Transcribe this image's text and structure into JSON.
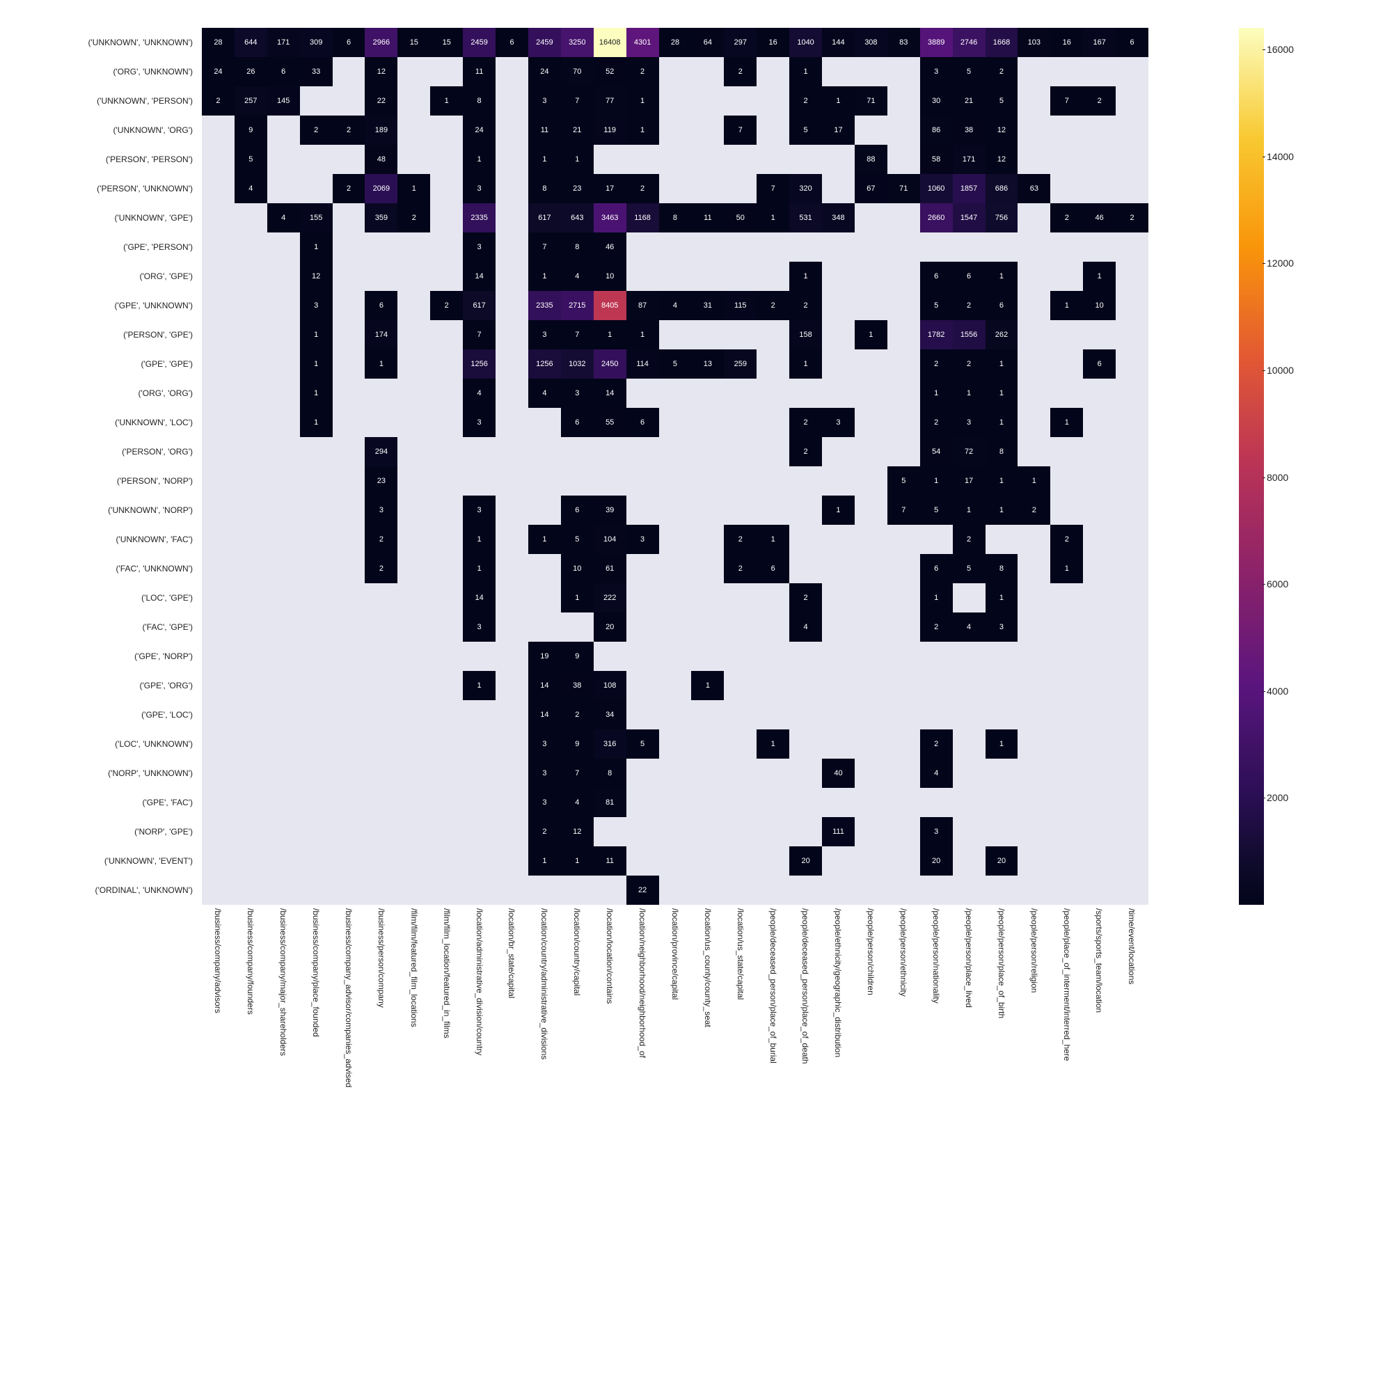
{
  "chart": {
    "type": "heatmap",
    "background_color": "#ffffff",
    "empty_color": "#e6e6f0",
    "cell_text_color": "#ffffff",
    "cell_text_fontsize": 11,
    "label_fontsize": 12,
    "colormap": {
      "stops": [
        {
          "v": 0,
          "c": "#03051a"
        },
        {
          "v": 0.05,
          "c": "#100b2d"
        },
        {
          "v": 0.125,
          "c": "#2b0f54"
        },
        {
          "v": 0.25,
          "c": "#5a157e"
        },
        {
          "v": 0.375,
          "c": "#8b226a"
        },
        {
          "v": 0.5,
          "c": "#b93357"
        },
        {
          "v": 0.625,
          "c": "#e35933"
        },
        {
          "v": 0.75,
          "c": "#f9950a"
        },
        {
          "v": 0.875,
          "c": "#f8c932"
        },
        {
          "v": 1.0,
          "c": "#fcfdbf"
        }
      ],
      "vmin": 0,
      "vmax": 16408
    },
    "colorbar_ticks": [
      2000,
      4000,
      6000,
      8000,
      10000,
      12000,
      14000,
      16000
    ],
    "x_labels": [
      "/business/company/advisors",
      "/business/company/founders",
      "/business/company/major_shareholders",
      "/business/company/place_founded",
      "/business/company_advisor/companies_advised",
      "/business/person/company",
      "/film/film/featured_film_locations",
      "/film/film_location/featured_in_films",
      "/location/administrative_division/country",
      "/location/br_state/capital",
      "/location/country/administrative_divisions",
      "/location/country/capital",
      "/location/location/contains",
      "/location/neighborhood/neighborhood_of",
      "/location/province/capital",
      "/location/us_county/county_seat",
      "/location/us_state/capital",
      "/people/deceased_person/place_of_burial",
      "/people/deceased_person/place_of_death",
      "/people/ethnicity/geographic_distribution",
      "/people/person/children",
      "/people/person/ethnicity",
      "/people/person/nationality",
      "/people/person/place_lived",
      "/people/person/place_of_birth",
      "/people/person/religion",
      "/people/place_of_interment/interred_here",
      "/sports/sports_team/location",
      "/time/event/locations"
    ],
    "y_labels": [
      "('UNKNOWN', 'UNKNOWN')",
      "('ORG', 'UNKNOWN')",
      "('UNKNOWN', 'PERSON')",
      "('UNKNOWN', 'ORG')",
      "('PERSON', 'PERSON')",
      "('PERSON', 'UNKNOWN')",
      "('UNKNOWN', 'GPE')",
      "('GPE', 'PERSON')",
      "('ORG', 'GPE')",
      "('GPE', 'UNKNOWN')",
      "('PERSON', 'GPE')",
      "('GPE', 'GPE')",
      "('ORG', 'ORG')",
      "('UNKNOWN', 'LOC')",
      "('PERSON', 'ORG')",
      "('PERSON', 'NORP')",
      "('UNKNOWN', 'NORP')",
      "('UNKNOWN', 'FAC')",
      "('FAC', 'UNKNOWN')",
      "('LOC', 'GPE')",
      "('FAC', 'GPE')",
      "('GPE', 'NORP')",
      "('GPE', 'ORG')",
      "('GPE', 'LOC')",
      "('LOC', 'UNKNOWN')",
      "('NORP', 'UNKNOWN')",
      "('GPE', 'FAC')",
      "('NORP', 'GPE')",
      "('UNKNOWN', 'EVENT')",
      "('ORDINAL', 'UNKNOWN')"
    ],
    "data": [
      [
        28,
        644,
        171,
        309,
        6,
        2966,
        15,
        15,
        2459,
        6,
        2459,
        3250,
        16408,
        4301,
        28,
        64,
        297,
        16,
        1040,
        144,
        308,
        83,
        3889,
        2746,
        1668,
        103,
        16,
        167,
        6
      ],
      [
        24,
        26,
        6,
        33,
        null,
        12,
        null,
        null,
        11,
        null,
        24,
        70,
        52,
        2,
        null,
        null,
        2,
        null,
        1,
        null,
        null,
        null,
        3,
        5,
        2,
        null,
        null,
        null,
        null
      ],
      [
        2,
        257,
        145,
        null,
        null,
        22,
        null,
        1,
        8,
        null,
        3,
        7,
        77,
        1,
        null,
        null,
        null,
        null,
        2,
        1,
        71,
        null,
        30,
        21,
        5,
        null,
        7,
        2,
        null
      ],
      [
        null,
        9,
        null,
        2,
        2,
        189,
        null,
        null,
        24,
        null,
        11,
        21,
        119,
        1,
        null,
        null,
        7,
        null,
        5,
        17,
        null,
        null,
        86,
        38,
        12,
        null,
        null,
        null,
        null
      ],
      [
        null,
        5,
        null,
        null,
        null,
        48,
        null,
        null,
        1,
        null,
        1,
        1,
        null,
        null,
        null,
        null,
        null,
        null,
        null,
        null,
        88,
        null,
        58,
        171,
        12,
        null,
        null,
        null,
        null
      ],
      [
        null,
        4,
        null,
        null,
        2,
        2069,
        1,
        null,
        3,
        null,
        8,
        23,
        17,
        2,
        null,
        null,
        null,
        7,
        320,
        null,
        67,
        71,
        1060,
        1857,
        686,
        63,
        null,
        null,
        null
      ],
      [
        null,
        null,
        4,
        155,
        null,
        359,
        2,
        null,
        2335,
        null,
        617,
        643,
        3463,
        1168,
        8,
        11,
        50,
        1,
        531,
        348,
        null,
        null,
        2660,
        1547,
        756,
        null,
        2,
        46,
        2
      ],
      [
        null,
        null,
        null,
        1,
        null,
        null,
        null,
        null,
        3,
        null,
        7,
        8,
        46,
        null,
        null,
        null,
        null,
        null,
        null,
        null,
        null,
        null,
        null,
        null,
        null,
        null,
        null,
        null,
        null
      ],
      [
        null,
        null,
        null,
        12,
        null,
        null,
        null,
        null,
        14,
        null,
        1,
        4,
        10,
        null,
        null,
        null,
        null,
        null,
        1,
        null,
        null,
        null,
        6,
        6,
        1,
        null,
        null,
        1,
        null
      ],
      [
        null,
        null,
        null,
        3,
        null,
        6,
        null,
        2,
        617,
        null,
        2335,
        2715,
        8405,
        87,
        4,
        31,
        115,
        2,
        2,
        null,
        null,
        null,
        5,
        2,
        6,
        null,
        1,
        10,
        null
      ],
      [
        null,
        null,
        null,
        1,
        null,
        174,
        null,
        null,
        7,
        null,
        3,
        7,
        1,
        1,
        null,
        null,
        null,
        null,
        158,
        null,
        1,
        null,
        1782,
        1556,
        262,
        null,
        null,
        null,
        null
      ],
      [
        null,
        null,
        null,
        1,
        null,
        1,
        null,
        null,
        1256,
        null,
        1256,
        1032,
        2450,
        114,
        5,
        13,
        259,
        null,
        1,
        null,
        null,
        null,
        2,
        2,
        1,
        null,
        null,
        6,
        null
      ],
      [
        null,
        null,
        null,
        1,
        null,
        null,
        null,
        null,
        4,
        null,
        4,
        3,
        14,
        null,
        null,
        null,
        null,
        null,
        null,
        null,
        null,
        null,
        1,
        1,
        1,
        null,
        null,
        null,
        null
      ],
      [
        null,
        null,
        null,
        1,
        null,
        null,
        null,
        null,
        3,
        null,
        null,
        6,
        55,
        6,
        null,
        null,
        null,
        null,
        2,
        3,
        null,
        null,
        2,
        3,
        1,
        null,
        1,
        null,
        null
      ],
      [
        null,
        null,
        null,
        null,
        null,
        294,
        null,
        null,
        null,
        null,
        null,
        null,
        null,
        null,
        null,
        null,
        null,
        null,
        2,
        null,
        null,
        null,
        54,
        72,
        8,
        null,
        null,
        null,
        null
      ],
      [
        null,
        null,
        null,
        null,
        null,
        23,
        null,
        null,
        null,
        null,
        null,
        null,
        null,
        null,
        null,
        null,
        null,
        null,
        null,
        null,
        null,
        5,
        1,
        17,
        1,
        1,
        null,
        null,
        null
      ],
      [
        null,
        null,
        null,
        null,
        null,
        3,
        null,
        null,
        3,
        null,
        null,
        6,
        39,
        null,
        null,
        null,
        null,
        null,
        null,
        1,
        null,
        7,
        5,
        1,
        1,
        2,
        null,
        null,
        null
      ],
      [
        null,
        null,
        null,
        null,
        null,
        2,
        null,
        null,
        1,
        null,
        1,
        5,
        104,
        3,
        null,
        null,
        2,
        1,
        null,
        null,
        null,
        null,
        null,
        2,
        null,
        null,
        2,
        null,
        null
      ],
      [
        null,
        null,
        null,
        null,
        null,
        2,
        null,
        null,
        1,
        null,
        null,
        10,
        61,
        null,
        null,
        null,
        2,
        6,
        null,
        null,
        null,
        null,
        6,
        5,
        8,
        null,
        1,
        null,
        null
      ],
      [
        null,
        null,
        null,
        null,
        null,
        null,
        null,
        null,
        14,
        null,
        null,
        1,
        222,
        null,
        null,
        null,
        null,
        null,
        2,
        null,
        null,
        null,
        1,
        null,
        1,
        null,
        null,
        null,
        null
      ],
      [
        null,
        null,
        null,
        null,
        null,
        null,
        null,
        null,
        3,
        null,
        null,
        null,
        20,
        null,
        null,
        null,
        null,
        null,
        4,
        null,
        null,
        null,
        2,
        4,
        3,
        null,
        null,
        null,
        null
      ],
      [
        null,
        null,
        null,
        null,
        null,
        null,
        null,
        null,
        null,
        null,
        19,
        9,
        null,
        null,
        null,
        null,
        null,
        null,
        null,
        null,
        null,
        null,
        null,
        null,
        null,
        null,
        null,
        null,
        null
      ],
      [
        null,
        null,
        null,
        null,
        null,
        null,
        null,
        null,
        1,
        null,
        14,
        38,
        108,
        null,
        null,
        1,
        null,
        null,
        null,
        null,
        null,
        null,
        null,
        null,
        null,
        null,
        null,
        null,
        null
      ],
      [
        null,
        null,
        null,
        null,
        null,
        null,
        null,
        null,
        null,
        null,
        14,
        2,
        34,
        null,
        null,
        null,
        null,
        null,
        null,
        null,
        null,
        null,
        null,
        null,
        null,
        null,
        null,
        null,
        null
      ],
      [
        null,
        null,
        null,
        null,
        null,
        null,
        null,
        null,
        null,
        null,
        3,
        9,
        316,
        5,
        null,
        null,
        null,
        1,
        null,
        null,
        null,
        null,
        2,
        null,
        1,
        null,
        null,
        null,
        null
      ],
      [
        null,
        null,
        null,
        null,
        null,
        null,
        null,
        null,
        null,
        null,
        3,
        7,
        8,
        null,
        null,
        null,
        null,
        null,
        null,
        40,
        null,
        null,
        4,
        null,
        null,
        null,
        null,
        null,
        null
      ],
      [
        null,
        null,
        null,
        null,
        null,
        null,
        null,
        null,
        null,
        null,
        3,
        4,
        81,
        null,
        null,
        null,
        null,
        null,
        null,
        null,
        null,
        null,
        null,
        null,
        null,
        null,
        null,
        null,
        null
      ],
      [
        null,
        null,
        null,
        null,
        null,
        null,
        null,
        null,
        null,
        null,
        2,
        12,
        null,
        null,
        null,
        null,
        null,
        null,
        null,
        111,
        null,
        null,
        3,
        null,
        null,
        null,
        null,
        null,
        null
      ],
      [
        null,
        null,
        null,
        null,
        null,
        null,
        null,
        null,
        null,
        null,
        1,
        1,
        11,
        null,
        null,
        null,
        null,
        null,
        20,
        null,
        null,
        null,
        20,
        null,
        20,
        null,
        null,
        null,
        null
      ],
      [
        null,
        null,
        null,
        null,
        null,
        null,
        null,
        null,
        null,
        null,
        null,
        null,
        null,
        22,
        null,
        null,
        null,
        null,
        null,
        null,
        null,
        null,
        null,
        null,
        null,
        null,
        null,
        null,
        null
      ]
    ]
  }
}
